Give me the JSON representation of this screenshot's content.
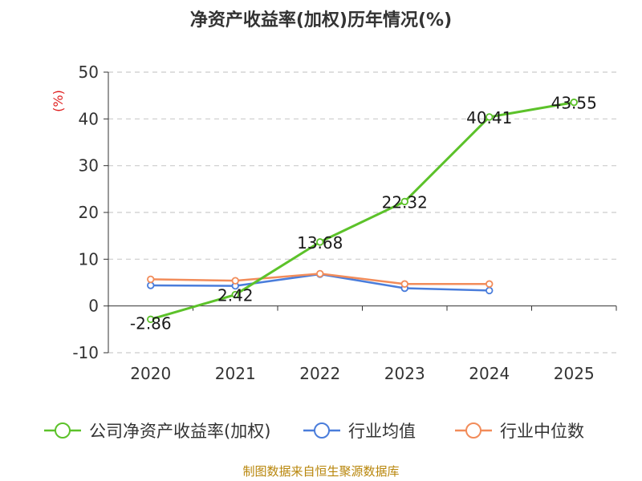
{
  "chart_data": {
    "type": "line",
    "title": "净资产收益率(加权)历年情况(%)",
    "ylabel": "(%)",
    "xlabel": "",
    "categories": [
      "2020",
      "2021",
      "2022",
      "2023",
      "2024",
      "2025"
    ],
    "ylim": [
      -10,
      50
    ],
    "yticks": [
      -10,
      0,
      10,
      20,
      30,
      40,
      50
    ],
    "grid": true,
    "legend_position": "bottom",
    "series": [
      {
        "name": "公司净资产收益率(加权)",
        "color": "#5cc22a",
        "values": [
          -2.86,
          2.42,
          13.68,
          22.32,
          40.41,
          43.55
        ],
        "labels": [
          "-2.86",
          "2.42",
          "13.68",
          "22.32",
          "40.41",
          "43.55"
        ]
      },
      {
        "name": "行业均值",
        "color": "#4a7ddb",
        "values": [
          4.4,
          4.3,
          6.8,
          3.8,
          3.3,
          null
        ]
      },
      {
        "name": "行业中位数",
        "color": "#f28c5a",
        "values": [
          5.7,
          5.4,
          6.9,
          4.7,
          4.7,
          null
        ]
      }
    ]
  },
  "source": "制图数据来自恒生聚源数据库"
}
